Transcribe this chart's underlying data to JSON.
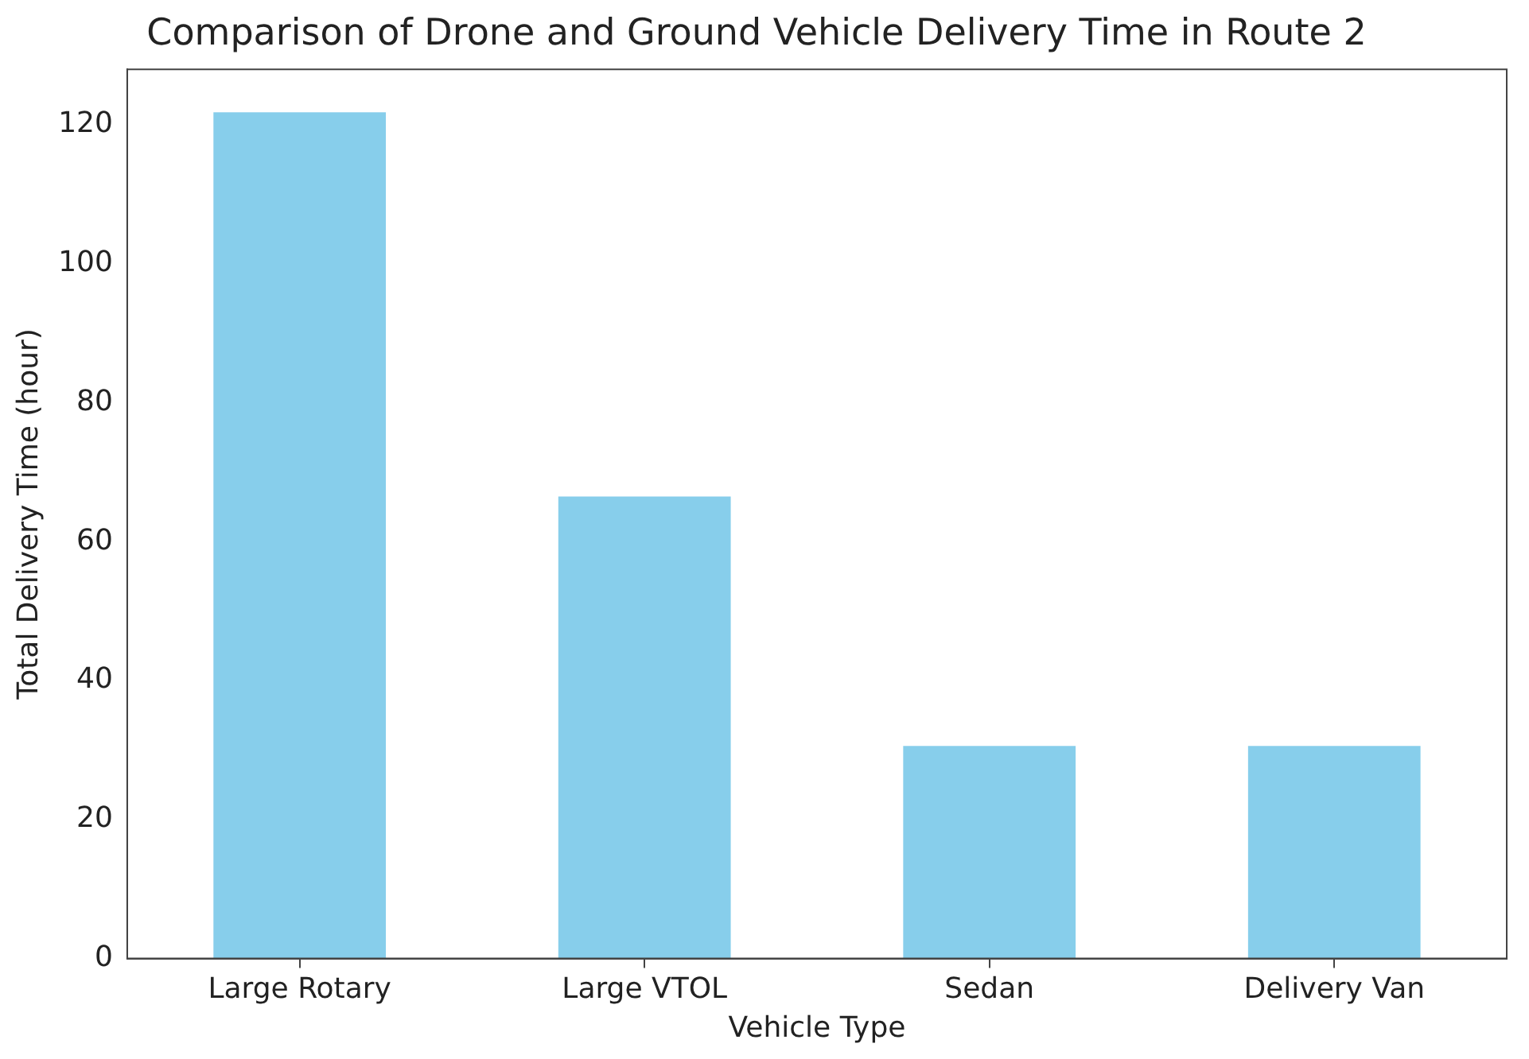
{
  "chart_data": {
    "type": "bar",
    "title": "Comparison of Drone and Ground Vehicle Delivery Time in Route 2",
    "xlabel": "Vehicle Type",
    "ylabel": "Total Delivery Time (hour)",
    "categories": [
      "Large Rotary",
      "Large VTOL",
      "Sedan",
      "Delivery Van"
    ],
    "values": [
      121.8,
      66.5,
      30.6,
      30.6
    ],
    "color": "#87ceeb",
    "ylim": [
      0,
      128
    ],
    "yticks": [
      0,
      20,
      40,
      60,
      80,
      100,
      120
    ],
    "grid": false,
    "legend": false
  }
}
